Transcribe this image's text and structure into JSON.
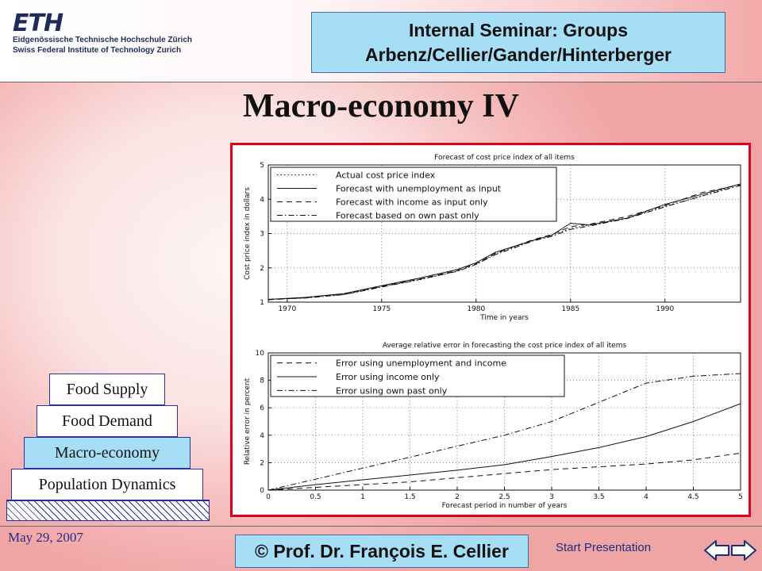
{
  "header": {
    "logo_text": "ETH",
    "logo_line1": "Eidgenössische Technische Hochschule Zürich",
    "logo_line2": "Swiss Federal Institute of Technology Zurich",
    "seminar_line1": "Internal Seminar: Groups",
    "seminar_line2": "Arbenz/Cellier/Gander/Hinterberger"
  },
  "slide_title": "Macro-economy IV",
  "pyramid": [
    {
      "label": "Food Supply",
      "active": false
    },
    {
      "label": "Food Demand",
      "active": false
    },
    {
      "label": "Macro-economy",
      "active": true
    },
    {
      "label": "Population Dynamics",
      "active": false
    }
  ],
  "footer": {
    "date": "May 29, 2007",
    "copyright": "© Prof. Dr. François E. Cellier",
    "start_presentation": "Start Presentation",
    "nav_back_icon": "arrow-left-icon",
    "nav_forward_icon": "arrow-right-icon"
  },
  "colors": {
    "frame": "#e0001c",
    "box_fill": "#a6def5",
    "text_blue": "#2a2a8a"
  },
  "chart_data": [
    {
      "type": "line",
      "title": "Forecast of cost price index of all items",
      "xlabel": "Time in years",
      "ylabel": "Cost price index in dollars",
      "xlim": [
        1969,
        1994
      ],
      "ylim": [
        1,
        5
      ],
      "xticks": [
        1970,
        1975,
        1980,
        1985,
        1990
      ],
      "yticks": [
        1,
        2,
        3,
        4,
        5
      ],
      "grid": true,
      "legend": "top-left",
      "x": [
        1969,
        1971,
        1973,
        1975,
        1977,
        1979,
        1980,
        1981,
        1983,
        1984,
        1985,
        1986,
        1988,
        1990,
        1992,
        1994
      ],
      "series": [
        {
          "name": "Actual cost price index",
          "style": "dotted",
          "values": [
            1.08,
            1.13,
            1.22,
            1.45,
            1.65,
            1.9,
            2.1,
            2.4,
            2.8,
            2.95,
            3.15,
            3.25,
            3.45,
            3.8,
            4.1,
            4.45
          ]
        },
        {
          "name": "Forecast with unemployment as input",
          "style": "solid",
          "values": [
            1.08,
            1.14,
            1.25,
            1.48,
            1.7,
            1.95,
            2.15,
            2.45,
            2.8,
            2.95,
            3.3,
            3.25,
            3.45,
            3.85,
            4.15,
            4.45
          ]
        },
        {
          "name": "Forecast with income as input only",
          "style": "dashed",
          "values": [
            1.07,
            1.13,
            1.23,
            1.46,
            1.67,
            1.92,
            2.12,
            2.42,
            2.82,
            2.97,
            3.2,
            3.27,
            3.5,
            3.82,
            4.2,
            4.42
          ]
        },
        {
          "name": "Forecast based on own past only",
          "style": "dashdot",
          "values": [
            1.08,
            1.12,
            1.22,
            1.44,
            1.66,
            1.9,
            2.1,
            2.38,
            2.78,
            2.92,
            3.12,
            3.22,
            3.44,
            3.78,
            4.1,
            4.4
          ]
        }
      ]
    },
    {
      "type": "line",
      "title": "Average relative error in forecasting the cost price index of all items",
      "xlabel": "Forecast period in number of years",
      "ylabel": "Relative error in percent",
      "xlim": [
        0,
        5
      ],
      "ylim": [
        0,
        10
      ],
      "xticks": [
        0,
        0.5,
        1,
        1.5,
        2,
        2.5,
        3,
        3.5,
        4,
        4.5,
        5
      ],
      "yticks": [
        0,
        2,
        4,
        6,
        8,
        10
      ],
      "grid": true,
      "legend": "top-left",
      "x": [
        0,
        0.5,
        1,
        1.5,
        2,
        2.5,
        3,
        3.5,
        4,
        4.5,
        5
      ],
      "series": [
        {
          "name": "Error using unemployment and income",
          "style": "dashed",
          "values": [
            0,
            0.2,
            0.4,
            0.6,
            0.9,
            1.2,
            1.5,
            1.7,
            1.9,
            2.2,
            2.7
          ]
        },
        {
          "name": "Error using income only",
          "style": "solid",
          "values": [
            0,
            0.4,
            0.75,
            1.1,
            1.45,
            1.85,
            2.45,
            3.1,
            3.9,
            5.0,
            6.3
          ]
        },
        {
          "name": "Error using own past only",
          "style": "dashdot",
          "values": [
            0,
            0.8,
            1.6,
            2.4,
            3.2,
            4.0,
            5.0,
            6.4,
            7.8,
            8.3,
            8.5
          ]
        }
      ]
    }
  ]
}
